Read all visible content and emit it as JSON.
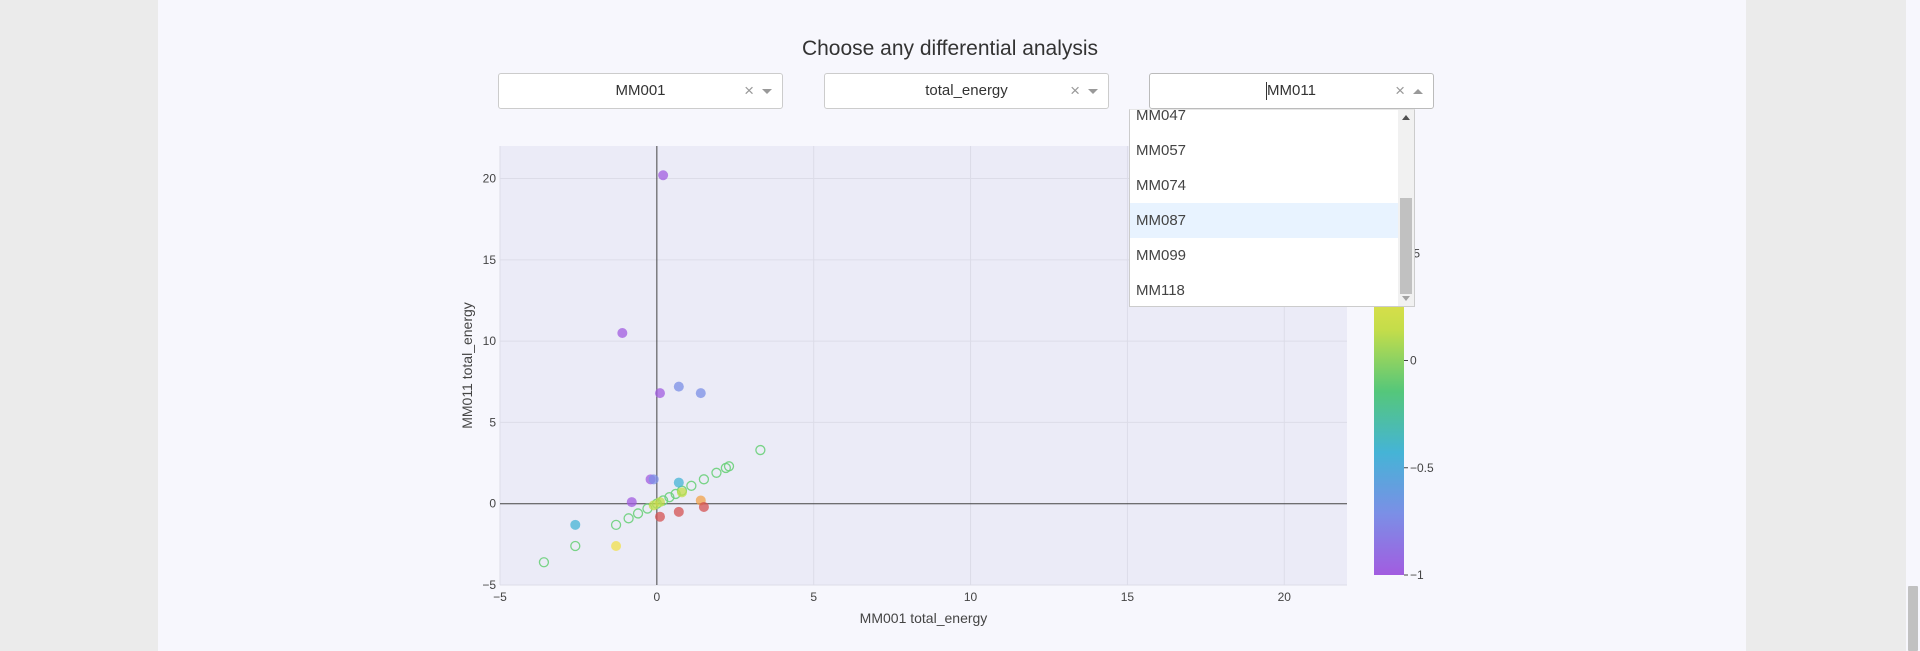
{
  "page": {
    "heading": "Choose any differential analysis"
  },
  "dropdowns": [
    {
      "value": "MM001",
      "clear": "×"
    },
    {
      "value": "total_energy",
      "clear": "×"
    },
    {
      "value": "MM011",
      "clear": "×"
    }
  ],
  "menu": {
    "options": [
      "MM047",
      "MM057",
      "MM074",
      "MM087",
      "MM099",
      "MM118"
    ],
    "focused_index": 3
  },
  "chart_data": {
    "type": "scatter",
    "xlabel": "MM001 total_energy",
    "ylabel": "MM011 total_energy",
    "xlim": [
      -5,
      22
    ],
    "ylim": [
      -5,
      22
    ],
    "xticks": [
      -5,
      0,
      5,
      10,
      15,
      20
    ],
    "yticks": [
      -5,
      0,
      5,
      10,
      15,
      20
    ],
    "colorbar": {
      "range": [
        -1,
        1
      ],
      "ticks": [
        -1,
        -0.5,
        0,
        0.5
      ],
      "tick_labels": [
        "−1",
        "−0.5",
        "0",
        ".5"
      ],
      "colors": [
        "#a25ce0",
        "#7b8fe6",
        "#45b4d6",
        "#55c77a",
        "#c4dd4a",
        "#f2e04a",
        "#f2a14a",
        "#d45252"
      ]
    },
    "points_filled": [
      {
        "x": 0.2,
        "y": 20.2,
        "c": -0.9
      },
      {
        "x": -1.1,
        "y": 10.5,
        "c": -0.9
      },
      {
        "x": 0.1,
        "y": 6.8,
        "c": -0.9
      },
      {
        "x": 0.7,
        "y": 7.2,
        "c": -0.85
      },
      {
        "x": 1.4,
        "y": 6.8,
        "c": -0.8
      },
      {
        "x": -0.2,
        "y": 1.5,
        "c": -0.9
      },
      {
        "x": -0.1,
        "y": 1.5,
        "c": -0.85
      },
      {
        "x": -0.8,
        "y": 0.1,
        "c": -0.9
      },
      {
        "x": 0.7,
        "y": 1.3,
        "c": -0.35
      },
      {
        "x": -2.6,
        "y": -1.3,
        "c": -0.4
      },
      {
        "x": -1.3,
        "y": -2.6,
        "c": 0.45
      },
      {
        "x": 1.4,
        "y": 0.2,
        "c": 0.7
      },
      {
        "x": 1.5,
        "y": -0.2,
        "c": 0.95
      },
      {
        "x": 0.7,
        "y": -0.5,
        "c": 0.9
      },
      {
        "x": 0.1,
        "y": -0.8,
        "c": 0.9
      },
      {
        "x": -0.1,
        "y": -0.1,
        "c": 0.0
      },
      {
        "x": 0.1,
        "y": 0.1,
        "c": 0.05
      },
      {
        "x": 0.8,
        "y": 0.7,
        "c": 0.0
      }
    ],
    "points_open": [
      {
        "x": -3.6,
        "y": -3.6
      },
      {
        "x": -2.6,
        "y": -2.6
      },
      {
        "x": -1.3,
        "y": -1.3
      },
      {
        "x": -0.9,
        "y": -0.9
      },
      {
        "x": -0.6,
        "y": -0.6
      },
      {
        "x": -0.3,
        "y": -0.3
      },
      {
        "x": 0.0,
        "y": 0.0
      },
      {
        "x": 0.2,
        "y": 0.2
      },
      {
        "x": 0.4,
        "y": 0.4
      },
      {
        "x": 0.6,
        "y": 0.6
      },
      {
        "x": 0.8,
        "y": 0.8
      },
      {
        "x": 1.1,
        "y": 1.1
      },
      {
        "x": 1.5,
        "y": 1.5
      },
      {
        "x": 1.9,
        "y": 1.9
      },
      {
        "x": 2.2,
        "y": 2.2
      },
      {
        "x": 2.3,
        "y": 2.3
      },
      {
        "x": 3.3,
        "y": 3.3
      }
    ],
    "open_color": "#6bd07a"
  }
}
